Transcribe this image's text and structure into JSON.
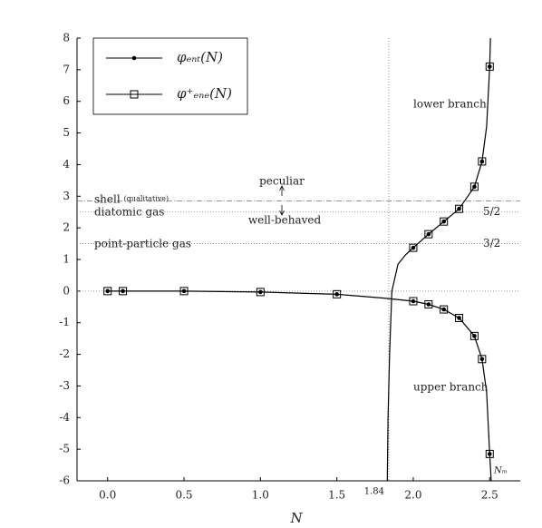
{
  "chart_data": {
    "type": "line",
    "x_label": "N",
    "xlim": [
      -0.2,
      2.7
    ],
    "ylim": [
      -6,
      8
    ],
    "xticks": [
      {
        "value": 0,
        "label": "0.0"
      },
      {
        "value": 0.5,
        "label": "0.5"
      },
      {
        "value": 1,
        "label": "1.0"
      },
      {
        "value": 1.5,
        "label": "1.5"
      },
      {
        "value": 2,
        "label": "2.0"
      },
      {
        "value": 2.5,
        "label": "2.5"
      }
    ],
    "yticks": [
      -6,
      -5,
      -4,
      -3,
      -2,
      -1,
      0,
      1,
      2,
      3,
      4,
      5,
      6,
      7,
      8
    ],
    "legend": "upper left",
    "series": [
      {
        "name": "φₑₙₜ(N)",
        "color": "#000000",
        "marker": "dot",
        "x": [
          0,
          0.1,
          0.5,
          1,
          1.5,
          2,
          2.1,
          2.2,
          2.3,
          2.4,
          2.45,
          2.5,
          2,
          2.1,
          2.2,
          2.3,
          2.4,
          2.45,
          2.5
        ],
        "values": [
          0,
          0,
          0,
          -0.03,
          -0.1,
          -0.32,
          -0.42,
          -0.58,
          -0.85,
          -1.42,
          -2.15,
          -5.15,
          1.37,
          1.8,
          2.2,
          2.6,
          3.3,
          4.1,
          7.1
        ]
      },
      {
        "name": "φ⁺ₑₙₑ(N)",
        "color": "#000000",
        "marker": "square",
        "x": [
          0,
          0.1,
          0.5,
          1,
          1.5,
          2,
          2.1,
          2.2,
          2.3,
          2.4,
          2.45,
          2.5,
          2,
          2.1,
          2.2,
          2.3,
          2.4,
          2.45,
          2.5
        ],
        "values": [
          0,
          0,
          0,
          -0.03,
          -0.1,
          -0.32,
          -0.42,
          -0.58,
          -0.85,
          -1.42,
          -2.15,
          -5.15,
          1.37,
          1.8,
          2.2,
          2.6,
          3.3,
          4.1,
          7.1
        ]
      }
    ],
    "curves": [
      {
        "x": [
          0,
          0.5,
          1,
          1.5,
          1.8,
          2,
          2.1,
          2.2,
          2.3,
          2.4,
          2.45,
          2.48,
          2.5,
          2.51
        ],
        "values": [
          0,
          0,
          -0.03,
          -0.1,
          -0.22,
          -0.32,
          -0.42,
          -0.58,
          -0.85,
          -1.42,
          -2.15,
          -3.2,
          -5.15,
          -6
        ]
      },
      {
        "x": [
          1.83,
          1.835,
          1.845,
          1.86,
          1.9,
          1.95,
          2,
          2.1,
          2.2,
          2.3,
          2.4,
          2.45,
          2.48,
          2.5,
          2.505
        ],
        "values": [
          -6,
          -4,
          -2,
          0,
          0.85,
          1.15,
          1.37,
          1.8,
          2.2,
          2.6,
          3.3,
          4.1,
          5.2,
          7.1,
          8
        ]
      }
    ],
    "hlines": [
      {
        "value": 0
      },
      {
        "value": 1.5,
        "label": "point-particle gas",
        "right_label": "3/2"
      },
      {
        "value": 2.5,
        "label": "diatomic gas",
        "right_label": "5/2"
      },
      {
        "value": 2.85,
        "label": "shell",
        "sublabel": "(qualitative)",
        "style": "dashdot"
      }
    ],
    "vline": {
      "value": 1.84
    },
    "annotations": [
      "peculiar",
      "well-behaved",
      "lower branch",
      "upper branch",
      "Nₘ"
    ]
  }
}
